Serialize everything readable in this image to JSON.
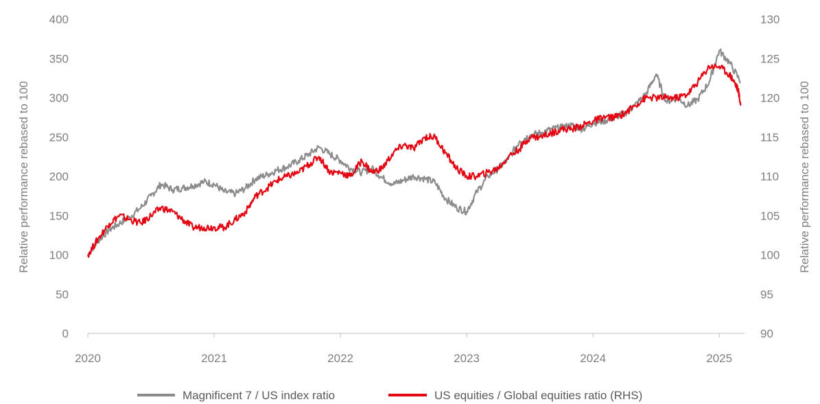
{
  "chart_data": {
    "type": "line",
    "xlabel": "",
    "x_ticks": [
      "2020",
      "2021",
      "2022",
      "2023",
      "2024",
      "2025"
    ],
    "x_range": [
      2020.0,
      2025.2
    ],
    "y_left": {
      "label": "Relative performance rebased to 100",
      "range": [
        0,
        400
      ],
      "ticks": [
        "0",
        "50",
        "100",
        "150",
        "200",
        "250",
        "300",
        "350",
        "400"
      ]
    },
    "y_right": {
      "label": "Relative performance rebased to 100",
      "range": [
        90,
        130
      ],
      "ticks": [
        "90",
        "95",
        "100",
        "105",
        "110",
        "115",
        "120",
        "125",
        "130"
      ]
    },
    "grid": false,
    "legend_position": "bottom",
    "series": [
      {
        "name": "Magnificent 7 / US index ratio",
        "axis": "left",
        "color": "#8c8c8c",
        "x": [
          2020.0,
          2020.08,
          2020.17,
          2020.25,
          2020.33,
          2020.42,
          2020.5,
          2020.58,
          2020.67,
          2020.75,
          2020.83,
          2020.92,
          2021.0,
          2021.08,
          2021.17,
          2021.25,
          2021.33,
          2021.42,
          2021.5,
          2021.58,
          2021.67,
          2021.75,
          2021.83,
          2021.92,
          2022.0,
          2022.08,
          2022.17,
          2022.25,
          2022.33,
          2022.42,
          2022.5,
          2022.58,
          2022.67,
          2022.75,
          2022.83,
          2022.92,
          2023.0,
          2023.08,
          2023.17,
          2023.25,
          2023.33,
          2023.42,
          2023.5,
          2023.58,
          2023.67,
          2023.75,
          2023.83,
          2023.92,
          2024.0,
          2024.08,
          2024.17,
          2024.25,
          2024.33,
          2024.42,
          2024.5,
          2024.58,
          2024.67,
          2024.75,
          2024.83,
          2024.92,
          2025.0,
          2025.08,
          2025.17
        ],
        "values": [
          100,
          118,
          132,
          140,
          148,
          160,
          175,
          190,
          183,
          185,
          188,
          193,
          190,
          180,
          178,
          185,
          197,
          202,
          208,
          212,
          220,
          228,
          237,
          228,
          220,
          210,
          205,
          210,
          198,
          190,
          195,
          200,
          197,
          192,
          172,
          160,
          155,
          180,
          200,
          210,
          222,
          245,
          252,
          255,
          260,
          262,
          265,
          260,
          268,
          270,
          275,
          280,
          290,
          305,
          330,
          295,
          300,
          290,
          298,
          320,
          360,
          345,
          320
        ]
      },
      {
        "name": "US equities /  Global equities ratio (RHS)",
        "axis": "right",
        "color": "#e30613",
        "x": [
          2020.0,
          2020.08,
          2020.17,
          2020.25,
          2020.33,
          2020.42,
          2020.5,
          2020.58,
          2020.67,
          2020.75,
          2020.83,
          2020.92,
          2021.0,
          2021.08,
          2021.17,
          2021.25,
          2021.33,
          2021.42,
          2021.5,
          2021.58,
          2021.67,
          2021.75,
          2021.83,
          2021.92,
          2022.0,
          2022.08,
          2022.17,
          2022.25,
          2022.33,
          2022.42,
          2022.5,
          2022.58,
          2022.67,
          2022.75,
          2022.83,
          2022.92,
          2023.0,
          2023.08,
          2023.17,
          2023.25,
          2023.33,
          2023.42,
          2023.5,
          2023.58,
          2023.67,
          2023.75,
          2023.83,
          2023.92,
          2024.0,
          2024.08,
          2024.17,
          2024.25,
          2024.33,
          2024.42,
          2024.5,
          2024.58,
          2024.67,
          2024.75,
          2024.83,
          2024.92,
          2025.0,
          2025.08,
          2025.12,
          2025.15,
          2025.17
        ],
        "values": [
          100,
          102,
          104,
          105,
          104.5,
          104,
          105,
          106,
          105.5,
          104.5,
          103.5,
          103.5,
          103.5,
          103.5,
          104.5,
          105.5,
          107.5,
          108.5,
          109.5,
          110,
          110.5,
          111.5,
          112.5,
          110.5,
          110.5,
          110,
          112,
          110.5,
          111,
          113,
          114,
          113.5,
          115,
          115,
          113,
          111,
          110,
          110,
          110.5,
          111,
          112.5,
          113.5,
          115,
          115,
          115.5,
          116,
          116,
          116.5,
          117,
          117.5,
          117.5,
          118,
          119,
          120,
          120,
          120,
          120,
          120.5,
          122,
          124,
          124,
          123,
          122,
          121,
          119
        ]
      }
    ]
  }
}
